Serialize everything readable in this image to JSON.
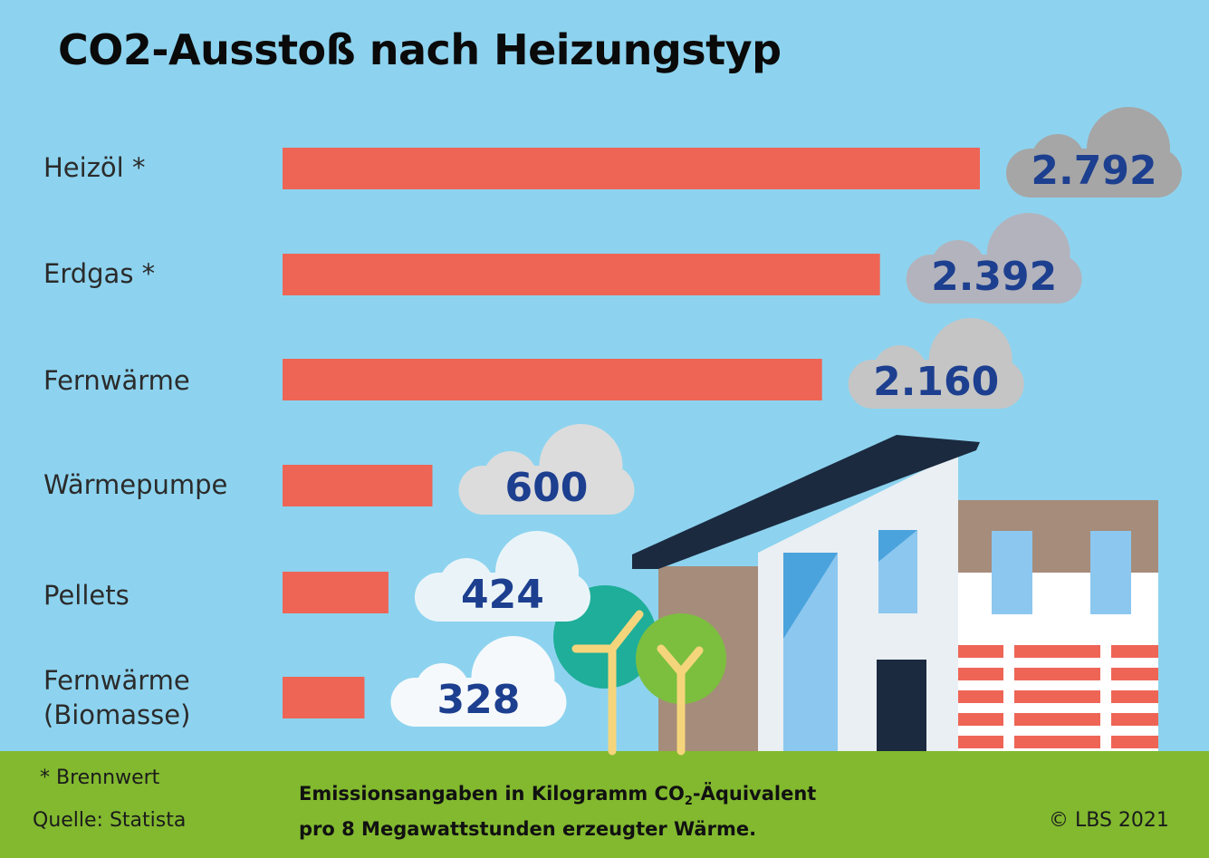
{
  "chart_data": {
    "type": "bar",
    "orientation": "horizontal",
    "title": "CO2-Ausstoß nach Heizungstyp",
    "categories": [
      "Heizöl *",
      "Erdgas *",
      "Fernwärme",
      "Wärmepumpe",
      "Pellets",
      "Fernwärme\n(Biomasse)"
    ],
    "values": [
      2792,
      2392,
      2160,
      600,
      424,
      328
    ],
    "value_labels": [
      "2.792",
      "2.392",
      "2.160",
      "600",
      "424",
      "328"
    ],
    "bar_color": "#ee6556",
    "value_color": "#1d3f8f",
    "cloud_colors": [
      "#a6a6a6",
      "#b3b3bd",
      "#c5c5c5",
      "#dcdcdc",
      "#eaf4f8",
      "#f6f9fb"
    ],
    "grid": false,
    "legend": "none"
  },
  "colors": {
    "background": "#8dd3ef",
    "footer": "#82b92f"
  },
  "footer": {
    "note": "* Brennwert",
    "source": "Quelle: Statista",
    "desc_line1_pre": "Emissionsangaben in Kilogramm CO",
    "desc_line1_sub": "2",
    "desc_line1_post": "-Äquivalent",
    "desc_line2": "pro 8 Megawattstunden erzeugter Wärme.",
    "copyright": "© LBS 2021"
  },
  "illustration": {
    "icons": [
      "house-icon",
      "tree-icon",
      "cloud-icon"
    ]
  }
}
